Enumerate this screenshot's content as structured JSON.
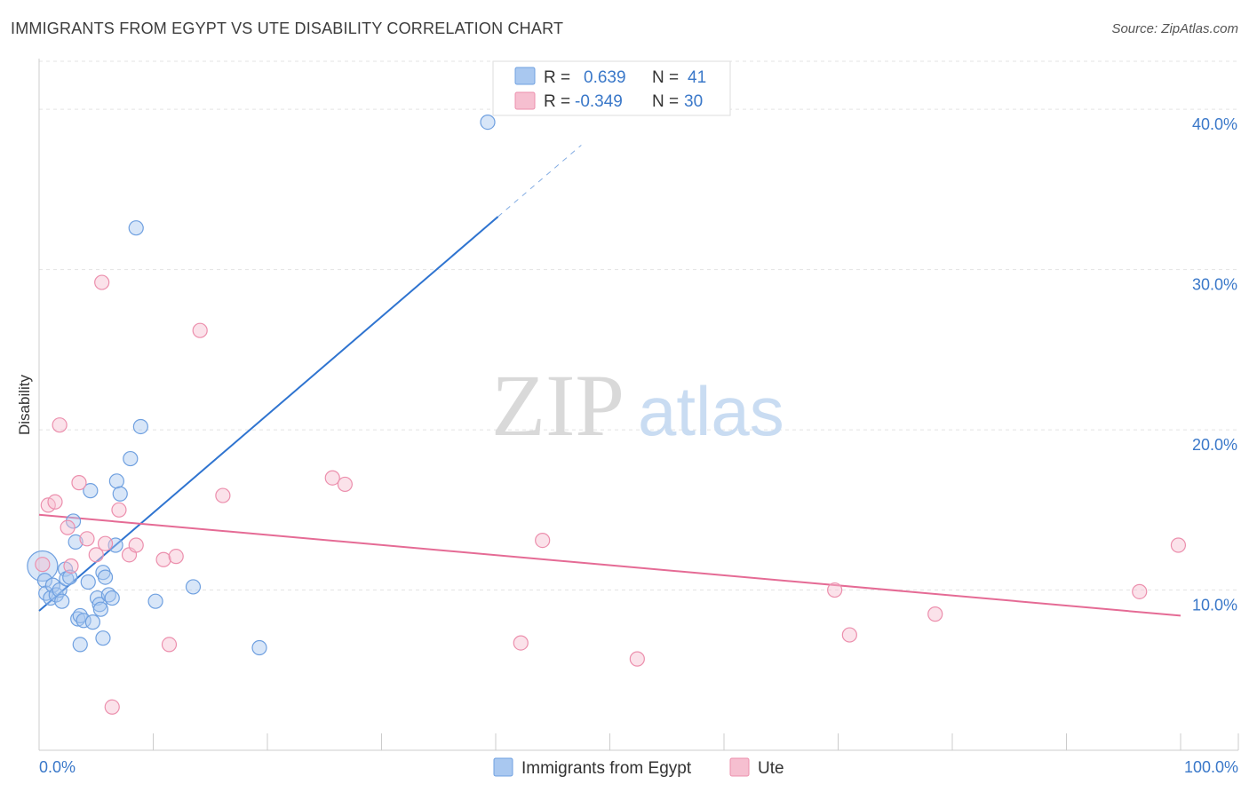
{
  "title": "IMMIGRANTS FROM EGYPT VS UTE DISABILITY CORRELATION CHART",
  "source": "Source: ZipAtlas.com",
  "watermark": {
    "part1": "ZIP",
    "part2": "atlas"
  },
  "chart_data": {
    "type": "scatter",
    "title": "IMMIGRANTS FROM EGYPT VS UTE DISABILITY CORRELATION CHART",
    "xlabel": "",
    "ylabel": "Disability",
    "xlim": [
      0,
      100
    ],
    "ylim": [
      0,
      43.5
    ],
    "x_tick_labels": {
      "min": "0.0%",
      "max": "100.0%"
    },
    "y_ticks": [
      10,
      20,
      30,
      40
    ],
    "y_tick_labels": [
      "10.0%",
      "20.0%",
      "30.0%",
      "40.0%"
    ],
    "grid": true,
    "legend": {
      "stats": [
        {
          "r_label": "R =",
          "r_value": "0.639",
          "n_label": "N =",
          "n_value": "41"
        },
        {
          "r_label": "R =",
          "r_value": "-0.349",
          "n_label": "N =",
          "n_value": "30"
        }
      ],
      "bottom": [
        "Immigrants from Egypt",
        "Ute"
      ]
    },
    "series": [
      {
        "name": "Immigrants from Egypt",
        "color": "#6fa0e0",
        "fill": "#a9c8f0",
        "trendline": {
          "x0": 0,
          "y0": 8.7,
          "x1": 40.2,
          "y1": 33.3,
          "dash_to_x": 47.5,
          "color": "#2f74d0"
        },
        "points": [
          {
            "x": 0.3,
            "y": 11.5,
            "big": true
          },
          {
            "x": 0.5,
            "y": 10.6
          },
          {
            "x": 0.6,
            "y": 9.8
          },
          {
            "x": 1.0,
            "y": 9.5
          },
          {
            "x": 1.2,
            "y": 10.3
          },
          {
            "x": 1.5,
            "y": 9.7
          },
          {
            "x": 1.8,
            "y": 10.0
          },
          {
            "x": 2.0,
            "y": 9.3
          },
          {
            "x": 2.3,
            "y": 11.3
          },
          {
            "x": 2.4,
            "y": 10.7
          },
          {
            "x": 2.7,
            "y": 10.8
          },
          {
            "x": 3.0,
            "y": 14.3
          },
          {
            "x": 3.2,
            "y": 13.0
          },
          {
            "x": 3.4,
            "y": 8.2
          },
          {
            "x": 3.6,
            "y": 8.4
          },
          {
            "x": 3.6,
            "y": 6.6
          },
          {
            "x": 3.9,
            "y": 8.1
          },
          {
            "x": 4.3,
            "y": 10.5
          },
          {
            "x": 4.5,
            "y": 16.2
          },
          {
            "x": 4.7,
            "y": 8.0
          },
          {
            "x": 5.1,
            "y": 9.5
          },
          {
            "x": 5.3,
            "y": 9.1
          },
          {
            "x": 5.4,
            "y": 8.8
          },
          {
            "x": 5.6,
            "y": 7.0
          },
          {
            "x": 5.6,
            "y": 11.1
          },
          {
            "x": 5.8,
            "y": 10.8
          },
          {
            "x": 6.1,
            "y": 9.7
          },
          {
            "x": 6.4,
            "y": 9.5
          },
          {
            "x": 6.7,
            "y": 12.8
          },
          {
            "x": 6.8,
            "y": 16.8
          },
          {
            "x": 7.1,
            "y": 16.0
          },
          {
            "x": 8.0,
            "y": 18.2
          },
          {
            "x": 8.5,
            "y": 32.6
          },
          {
            "x": 8.9,
            "y": 20.2
          },
          {
            "x": 10.2,
            "y": 9.3
          },
          {
            "x": 13.5,
            "y": 10.2
          },
          {
            "x": 19.3,
            "y": 6.4
          },
          {
            "x": 39.3,
            "y": 39.2
          }
        ]
      },
      {
        "name": "Ute",
        "color": "#ec8fad",
        "fill": "#f6bfd0",
        "trendline": {
          "x0": 0,
          "y0": 14.7,
          "x1": 100,
          "y1": 8.4,
          "color": "#e56b95"
        },
        "points": [
          {
            "x": 0.3,
            "y": 11.6
          },
          {
            "x": 0.8,
            "y": 15.3
          },
          {
            "x": 1.4,
            "y": 15.5
          },
          {
            "x": 1.8,
            "y": 20.3
          },
          {
            "x": 2.5,
            "y": 13.9
          },
          {
            "x": 2.8,
            "y": 11.5
          },
          {
            "x": 3.5,
            "y": 16.7
          },
          {
            "x": 4.2,
            "y": 13.2
          },
          {
            "x": 5.0,
            "y": 12.2
          },
          {
            "x": 5.5,
            "y": 29.2
          },
          {
            "x": 5.8,
            "y": 12.9
          },
          {
            "x": 6.4,
            "y": 2.7
          },
          {
            "x": 7.0,
            "y": 15.0
          },
          {
            "x": 7.9,
            "y": 12.2
          },
          {
            "x": 8.5,
            "y": 12.8
          },
          {
            "x": 10.9,
            "y": 11.9
          },
          {
            "x": 12.0,
            "y": 12.1
          },
          {
            "x": 11.4,
            "y": 6.6
          },
          {
            "x": 14.1,
            "y": 26.2
          },
          {
            "x": 16.1,
            "y": 15.9
          },
          {
            "x": 25.7,
            "y": 17.0
          },
          {
            "x": 26.8,
            "y": 16.6
          },
          {
            "x": 42.2,
            "y": 6.7
          },
          {
            "x": 44.1,
            "y": 13.1
          },
          {
            "x": 52.4,
            "y": 5.7
          },
          {
            "x": 69.7,
            "y": 10.0
          },
          {
            "x": 71.0,
            "y": 7.2
          },
          {
            "x": 78.5,
            "y": 8.5
          },
          {
            "x": 96.4,
            "y": 9.9
          },
          {
            "x": 99.8,
            "y": 12.8
          }
        ]
      }
    ]
  }
}
